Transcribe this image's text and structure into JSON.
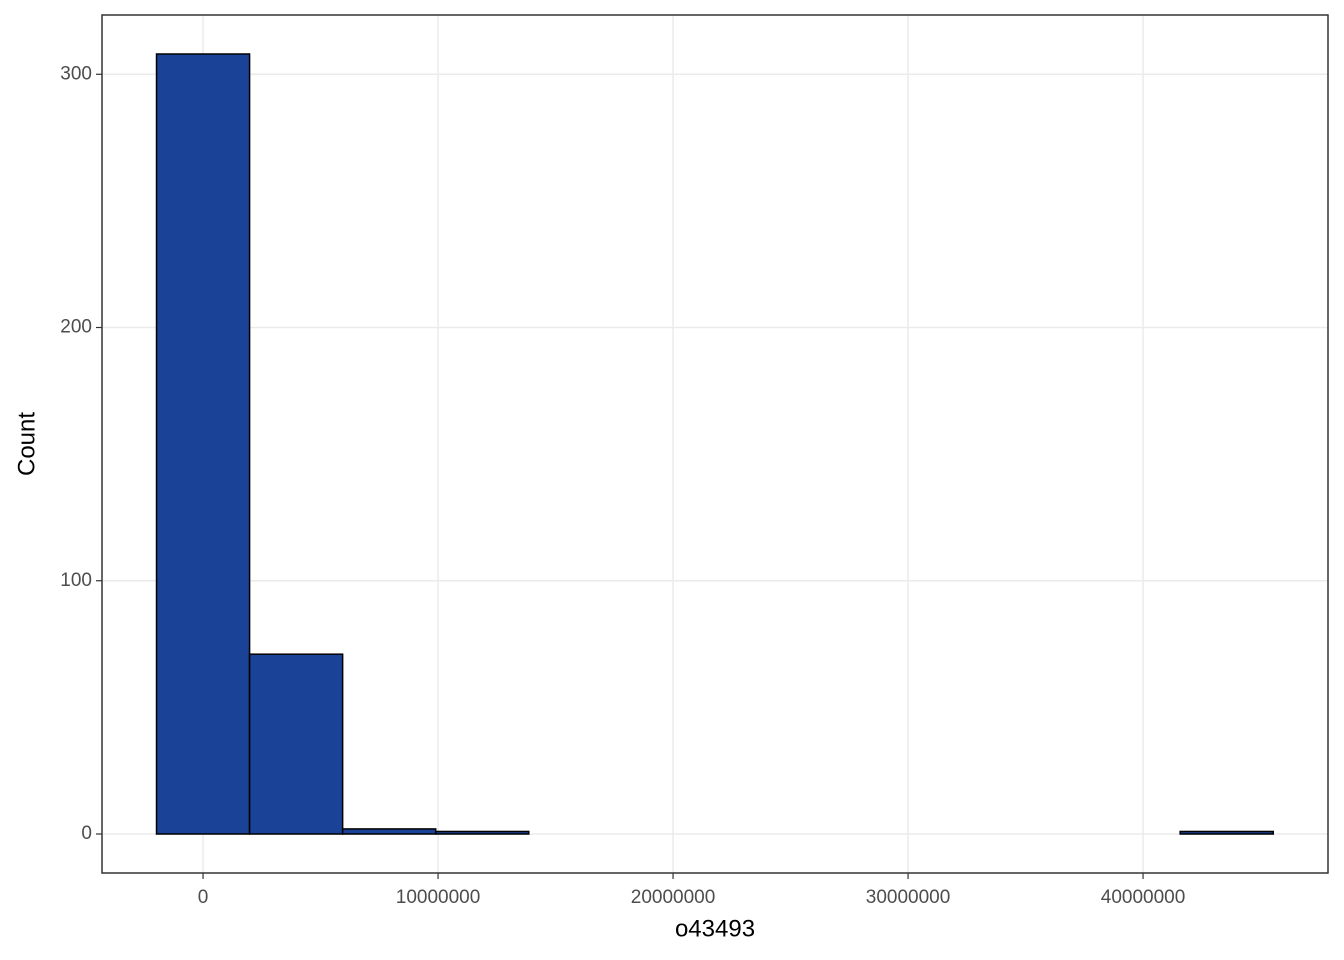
{
  "chart_data": {
    "type": "histogram",
    "x_label": "o43493",
    "y_label": "Count",
    "bins": [
      -1980000,
      1980000,
      5940000,
      9900000,
      13860000,
      17820000,
      21780000,
      25740000,
      29700000,
      33660000,
      37620000,
      41580000,
      45540000
    ],
    "values": [
      308,
      71,
      2,
      1,
      0,
      0,
      0,
      0,
      0,
      0,
      0,
      1
    ],
    "color": "#1a4296",
    "xlim": [
      -4300000,
      47870000
    ],
    "xticks": [
      0,
      10000000,
      20000000,
      30000000,
      40000000
    ],
    "ylim": [
      -15.4,
      323.4
    ],
    "yticks": [
      0,
      100,
      200,
      300
    ],
    "grid": true
  }
}
